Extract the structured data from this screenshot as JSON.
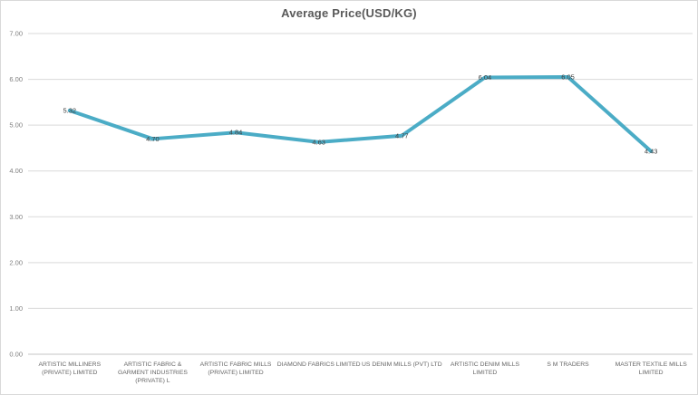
{
  "title": "Average Price(USD/KG)",
  "chart_data": {
    "type": "line",
    "title": "Average Price(USD/KG)",
    "categories": [
      "ARTISTIC MILLINERS (PRIVATE) LIMITED",
      "ARTISTIC FABRIC & GARMENT INDUSTRIES (PRIVATE) L",
      "ARTISTIC FABRIC MILLS (PRIVATE) LIMITED",
      "DIAMOND FABRICS LIMITED",
      "US DENIM MILLS (PVT) LTD",
      "ARTISTIC DENIM MILLS LIMITED",
      "S M TRADERS",
      "MASTER TEXTILE MILLS LIMITED"
    ],
    "values": [
      5.32,
      4.7,
      4.84,
      4.63,
      4.77,
      6.04,
      6.05,
      4.43
    ],
    "data_labels": [
      "5.32",
      "4.70",
      "4.84",
      "4.63",
      "4.77",
      "6.04",
      "6.05",
      "4.43"
    ],
    "xlabel": "",
    "ylabel": "",
    "ylim": [
      0,
      7
    ],
    "y_tick_step": 1,
    "y_tick_labels": [
      "0.00",
      "1.00",
      "2.00",
      "3.00",
      "4.00",
      "5.00",
      "6.00",
      "7.00"
    ],
    "grid": true,
    "legend": false,
    "colors": {
      "line": "#4BACC6",
      "gridline": "#D9D9D9",
      "axis_line": "#C6C6C6",
      "y_tick_text": "#7F7F7F",
      "data_label_text": "#404040",
      "title_text": "#595959",
      "category_text": "#666666"
    }
  }
}
